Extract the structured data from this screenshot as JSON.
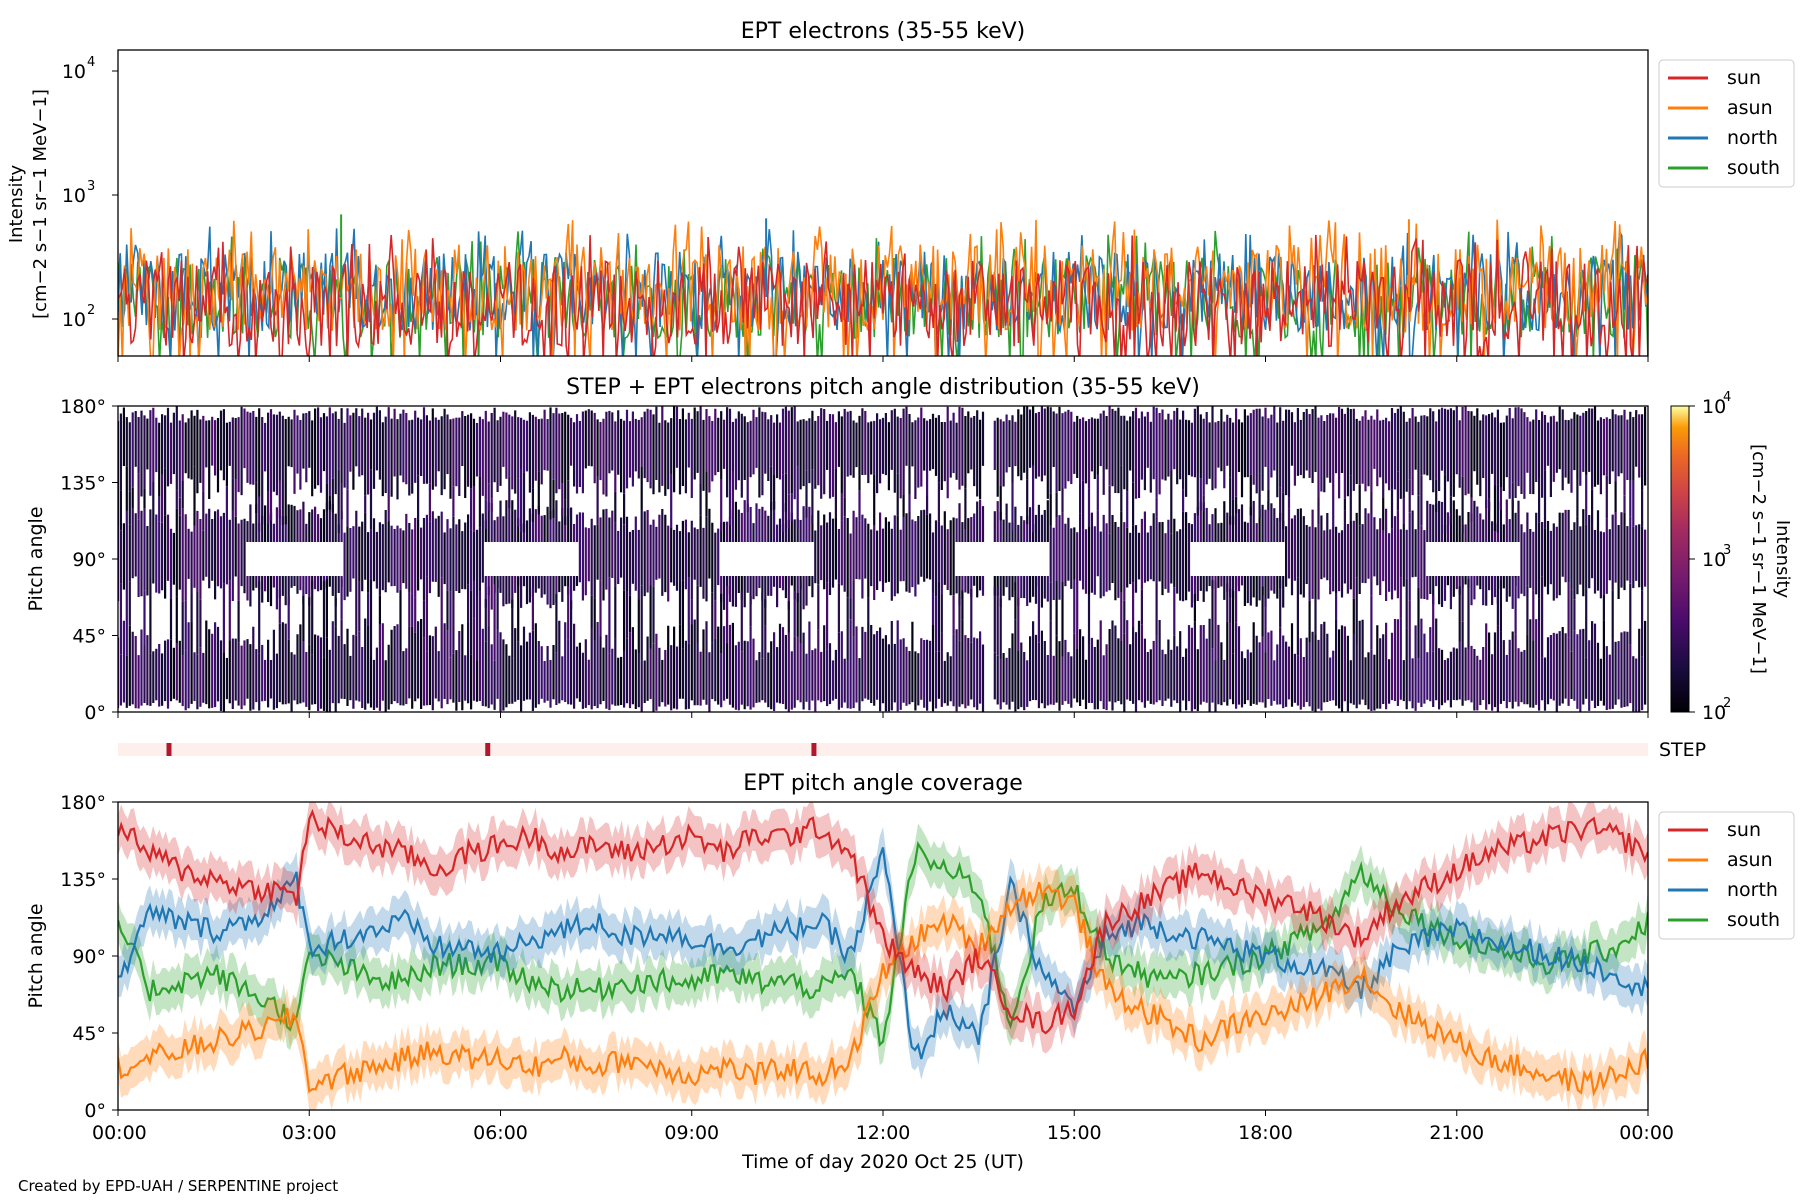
{
  "credit": "Created by EPD-UAH / SERPENTINE project",
  "colors": {
    "sun": "#d62728",
    "asun": "#ff7f0e",
    "north": "#1f77b4",
    "south": "#2ca02c",
    "step_bar": "#fdf0ec",
    "step_mark": "#b2182b"
  },
  "chart_data": [
    {
      "type": "line",
      "title": "EPT electrons (35-55 keV)",
      "ylabel": "Intensity",
      "ylabel_units": "[cm−2 s−1 sr−1 MeV−1]",
      "y_scale": "log",
      "ylim": [
        50,
        15000
      ],
      "y_ticks": [
        "10^2",
        "10^3",
        "10^4"
      ],
      "legend_position": "outside-right",
      "series": [
        {
          "name": "sun",
          "typical_range": [
            60,
            300
          ]
        },
        {
          "name": "asun",
          "typical_range": [
            80,
            400
          ]
        },
        {
          "name": "north",
          "typical_range": [
            80,
            350
          ]
        },
        {
          "name": "south",
          "typical_range": [
            70,
            330
          ]
        }
      ],
      "peaks": [
        {
          "series": "south",
          "time": "03:30",
          "value": 700
        },
        {
          "series": "north",
          "time": "10:10",
          "value": 650
        },
        {
          "series": "asun",
          "time": "20:15",
          "value": 640
        }
      ]
    },
    {
      "type": "heatmap",
      "title": "STEP + EPT electrons pitch angle distribution (35-55 keV)",
      "ylabel": "Pitch angle",
      "ylim": [
        0,
        180
      ],
      "y_ticks": [
        "0°",
        "45°",
        "90°",
        "135°",
        "180°"
      ],
      "colorbar": {
        "label": "Intensity",
        "units": "[cm−2 s−1 sr−1 MeV−1]",
        "scale": "log",
        "range": [
          100,
          10000
        ],
        "ticks": [
          "10^2",
          "10^3",
          "10^4"
        ],
        "colormap": "inferno"
      },
      "data_gap": [
        "13:35",
        "13:45"
      ]
    },
    {
      "type": "table",
      "label": "STEP",
      "markers": [
        "00:48",
        "05:48",
        "10:55"
      ]
    },
    {
      "type": "line",
      "title": "EPT pitch angle coverage",
      "ylabel": "Pitch angle",
      "ylim": [
        0,
        180
      ],
      "y_ticks": [
        "0°",
        "45°",
        "90°",
        "135°",
        "180°"
      ],
      "xlabel": "Time of day 2020 Oct 25 (UT)",
      "x_ticks": [
        "00:00",
        "03:00",
        "06:00",
        "09:00",
        "12:00",
        "15:00",
        "18:00",
        "21:00",
        "00:00"
      ],
      "x_hours": [
        0,
        3,
        6,
        9,
        12,
        15,
        18,
        21,
        24
      ],
      "legend_position": "outside-right",
      "band_halfwidth": 12,
      "series": [
        {
          "name": "sun",
          "x": [
            0,
            0.5,
            1,
            1.5,
            2,
            2.5,
            2.8,
            3,
            3.5,
            4,
            4.5,
            5,
            5.5,
            6,
            6.5,
            7,
            7.5,
            8,
            8.5,
            9,
            9.5,
            10,
            10.5,
            11,
            11.5,
            12,
            12.5,
            13,
            13.5,
            14,
            14.5,
            15,
            15.5,
            16,
            16.5,
            17,
            17.5,
            18,
            18.5,
            19,
            19.5,
            20,
            20.5,
            21,
            21.5,
            22,
            22.5,
            23,
            23.5,
            24
          ],
          "values": [
            165,
            150,
            140,
            135,
            130,
            128,
            125,
            170,
            160,
            155,
            150,
            140,
            150,
            155,
            160,
            150,
            155,
            150,
            155,
            160,
            150,
            160,
            160,
            165,
            150,
            100,
            80,
            70,
            90,
            60,
            50,
            60,
            110,
            120,
            130,
            140,
            130,
            125,
            120,
            110,
            100,
            120,
            130,
            140,
            150,
            155,
            160,
            165,
            160,
            150
          ]
        },
        {
          "name": "asun",
          "x": [
            0,
            0.5,
            1,
            1.5,
            2,
            2.5,
            2.8,
            3,
            3.5,
            4,
            4.5,
            5,
            5.5,
            6,
            6.5,
            7,
            7.5,
            8,
            8.5,
            9,
            9.5,
            10,
            10.5,
            11,
            11.5,
            12,
            12.5,
            13,
            13.5,
            14,
            14.5,
            15,
            15.5,
            16,
            16.5,
            17,
            17.5,
            18,
            18.5,
            19,
            19.5,
            20,
            20.5,
            21,
            21.5,
            22,
            22.5,
            23,
            23.5,
            24
          ],
          "values": [
            25,
            30,
            35,
            40,
            45,
            50,
            55,
            15,
            20,
            25,
            30,
            35,
            30,
            30,
            25,
            30,
            25,
            30,
            25,
            20,
            25,
            20,
            25,
            20,
            30,
            80,
            100,
            110,
            95,
            120,
            130,
            120,
            70,
            60,
            50,
            40,
            50,
            55,
            60,
            70,
            80,
            60,
            50,
            40,
            30,
            25,
            20,
            15,
            20,
            30
          ]
        },
        {
          "name": "north",
          "x": [
            0,
            0.5,
            1,
            1.5,
            2,
            2.5,
            2.8,
            3,
            3.5,
            4,
            4.5,
            5,
            5.5,
            6,
            6.5,
            7,
            7.5,
            8,
            8.5,
            9,
            9.5,
            10,
            10.5,
            11,
            11.5,
            12,
            12.5,
            13,
            13.5,
            14,
            14.5,
            15,
            15.5,
            16,
            16.5,
            17,
            17.5,
            18,
            18.5,
            19,
            19.5,
            20,
            20.5,
            21,
            21.5,
            22,
            22.5,
            23,
            23.5,
            24
          ],
          "values": [
            75,
            115,
            110,
            105,
            110,
            120,
            135,
            95,
            100,
            105,
            110,
            95,
            95,
            90,
            100,
            105,
            110,
            100,
            105,
            100,
            95,
            100,
            105,
            110,
            90,
            150,
            30,
            60,
            40,
            130,
            80,
            60,
            100,
            110,
            105,
            100,
            95,
            90,
            85,
            80,
            70,
            90,
            100,
            105,
            100,
            95,
            90,
            85,
            80,
            70
          ]
        },
        {
          "name": "south",
          "x": [
            0,
            0.5,
            1,
            1.5,
            2,
            2.5,
            2.8,
            3,
            3.5,
            4,
            4.5,
            5,
            5.5,
            6,
            6.5,
            7,
            7.5,
            8,
            8.5,
            9,
            9.5,
            10,
            10.5,
            11,
            11.5,
            12,
            12.5,
            13,
            13.5,
            14,
            14.5,
            15,
            15.5,
            16,
            16.5,
            17,
            17.5,
            18,
            18.5,
            19,
            19.5,
            20,
            20.5,
            21,
            21.5,
            22,
            22.5,
            23,
            23.5,
            24
          ],
          "values": [
            110,
            70,
            75,
            80,
            70,
            60,
            50,
            90,
            85,
            75,
            75,
            85,
            85,
            85,
            75,
            70,
            70,
            75,
            75,
            75,
            80,
            75,
            75,
            70,
            80,
            40,
            150,
            140,
            130,
            50,
            120,
            130,
            90,
            80,
            75,
            80,
            85,
            90,
            100,
            110,
            140,
            120,
            110,
            100,
            95,
            90,
            85,
            90,
            95,
            110
          ]
        }
      ]
    }
  ]
}
